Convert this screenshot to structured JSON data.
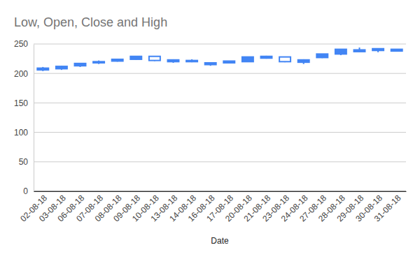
{
  "chart_data": {
    "type": "candlestick",
    "title": "Low, Open, Close and High",
    "x_label": "Date",
    "x": [
      "02-08-18",
      "03-08-18",
      "06-08-18",
      "07-08-18",
      "08-08-18",
      "09-08-18",
      "10-08-18",
      "13-08-18",
      "14-08-18",
      "16-08-18",
      "17-08-18",
      "20-08-18",
      "21-08-18",
      "23-08-18",
      "24-08-18",
      "27-08-18",
      "28-08-18",
      "29-08-18",
      "30-08-18",
      "31-08-18"
    ],
    "low": [
      204,
      206,
      211,
      216,
      220,
      223,
      221,
      218,
      219,
      213,
      217,
      220,
      225,
      219,
      216,
      226,
      231,
      236,
      236,
      237
    ],
    "open": [
      209,
      212,
      217,
      220,
      224,
      229,
      222,
      223,
      222,
      218,
      221,
      228,
      229,
      220,
      223,
      233,
      241,
      240,
      242,
      241
    ],
    "close": [
      206,
      208,
      213,
      218,
      221,
      224,
      229,
      220,
      220,
      215,
      218,
      220,
      226,
      228,
      219,
      227,
      233,
      237,
      239,
      238
    ],
    "high": [
      211,
      213,
      218,
      222,
      225,
      229,
      229,
      224,
      224,
      219,
      221,
      228,
      230,
      228,
      224,
      233,
      241,
      244,
      242,
      241
    ],
    "color": "#4285f4",
    "ylim": [
      0,
      250
    ],
    "yticks": [
      0,
      50,
      100,
      150,
      200,
      250
    ],
    "grid": true
  }
}
